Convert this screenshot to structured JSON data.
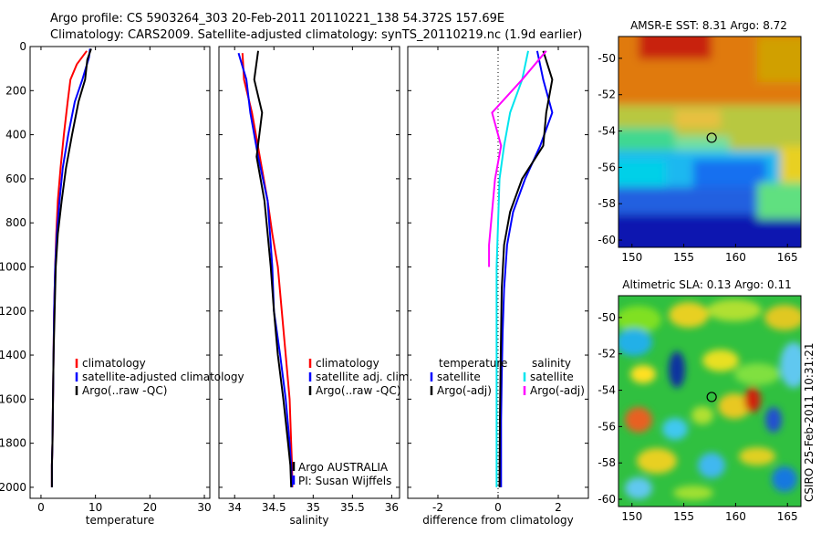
{
  "header": {
    "line1": "Argo profile: CS 5903264_303 20-Feb-2011 20110221_138 54.372S 157.69E",
    "line2": "Climatology: CARS2009. Satellite-adjusted climatology: synTS_20110219.nc (1.9d earlier)"
  },
  "side_label": "CSIRO 25-Feb-2011 10:31:21",
  "colors": {
    "climatology": "#ff0000",
    "satellite": "#0000ff",
    "argo": "#000000",
    "argo_salinity_diff": "#ff00ff",
    "satellite_salinity_diff": "#00e5ee"
  },
  "chart_data": [
    {
      "type": "line",
      "xlabel": "temperature",
      "ylim": [
        2050,
        0
      ],
      "xlim": [
        -2,
        31
      ],
      "yticks": [
        0,
        200,
        400,
        600,
        800,
        1000,
        1200,
        1400,
        1600,
        1800,
        2000
      ],
      "xticks": [
        0,
        10,
        20,
        30
      ],
      "legend": [
        "climatology",
        "satellite-adjusted climatology",
        "Argo(..raw -QC)"
      ],
      "series": [
        {
          "name": "climatology",
          "color": "#ff0000",
          "x": [
            8.4,
            6.6,
            5.4,
            4.9,
            4.2,
            3.6,
            3.1,
            2.8,
            2.6,
            2.4,
            2.3,
            2.2,
            2.1,
            2.0,
            2.0
          ],
          "y": [
            20,
            80,
            150,
            250,
            400,
            550,
            700,
            850,
            1000,
            1200,
            1400,
            1600,
            1800,
            1900,
            2000
          ]
        },
        {
          "name": "satellite-adjusted climatology",
          "color": "#0000ff",
          "x": [
            9.0,
            8.8,
            7.6,
            6.2,
            5.0,
            4.0,
            3.4,
            2.9,
            2.6,
            2.4,
            2.3,
            2.2,
            2.1,
            2.0,
            2.0
          ],
          "y": [
            10,
            50,
            150,
            250,
            400,
            550,
            700,
            850,
            1000,
            1200,
            1400,
            1600,
            1800,
            1900,
            2000
          ]
        },
        {
          "name": "Argo(..raw -QC)",
          "color": "#000000",
          "x": [
            9.2,
            8.5,
            8.1,
            6.9,
            5.7,
            4.6,
            3.8,
            3.1,
            2.7,
            2.5,
            2.3,
            2.2,
            2.1,
            2.0,
            2.0
          ],
          "y": [
            10,
            60,
            150,
            250,
            400,
            550,
            700,
            850,
            1000,
            1200,
            1400,
            1600,
            1800,
            1900,
            2000
          ]
        }
      ]
    },
    {
      "type": "line",
      "xlabel": "salinity",
      "ylim": [
        2050,
        0
      ],
      "xlim": [
        33.8,
        36.1
      ],
      "xticks": [
        34,
        34.5,
        35,
        35.5,
        36
      ],
      "legend": [
        "climatology",
        "satellite adj. clim.",
        "Argo(..raw -QC)"
      ],
      "annotation": [
        "Argo AUSTRALIA",
        "PI: Susan Wijffels"
      ],
      "series": [
        {
          "name": "climatology",
          "color": "#ff0000",
          "x": [
            34.1,
            34.12,
            34.22,
            34.32,
            34.42,
            34.48,
            34.55,
            34.6,
            34.65,
            34.7,
            34.72,
            34.73,
            34.735
          ],
          "y": [
            30,
            150,
            300,
            500,
            700,
            850,
            1000,
            1200,
            1400,
            1600,
            1800,
            1900,
            2000
          ]
        },
        {
          "name": "satellite adj. clim.",
          "color": "#0000ff",
          "x": [
            34.05,
            34.15,
            34.2,
            34.3,
            34.42,
            34.45,
            34.48,
            34.5,
            34.58,
            34.65,
            34.7,
            34.72,
            34.73
          ],
          "y": [
            30,
            150,
            300,
            500,
            700,
            850,
            1000,
            1200,
            1400,
            1600,
            1800,
            1900,
            2000
          ]
        },
        {
          "name": "Argo(..raw -QC)",
          "color": "#000000",
          "x": [
            34.3,
            34.25,
            34.35,
            34.28,
            34.38,
            34.42,
            34.46,
            34.5,
            34.55,
            34.62,
            34.68,
            34.71,
            34.72
          ],
          "y": [
            20,
            150,
            300,
            500,
            700,
            850,
            1000,
            1200,
            1400,
            1600,
            1800,
            1900,
            2000
          ]
        }
      ]
    },
    {
      "type": "line",
      "xlabel": "difference from climatology",
      "ylim": [
        2050,
        0
      ],
      "xlim": [
        -3,
        3
      ],
      "xticks": [
        -2,
        0,
        2
      ],
      "legend": [
        "temperature",
        "satellite",
        "Argo(-adj)",
        "salinity",
        "satellite",
        "Argo(-adj)"
      ],
      "series": [
        {
          "name": "temperature satellite",
          "color": "#0000ff",
          "x": [
            1.3,
            1.5,
            1.8,
            1.4,
            0.9,
            0.5,
            0.3,
            0.2,
            0.15,
            0.12,
            0.1,
            0.1,
            0.1
          ],
          "y": [
            20,
            150,
            300,
            450,
            600,
            750,
            900,
            1100,
            1300,
            1500,
            1700,
            1900,
            2000
          ]
        },
        {
          "name": "temperature Argo(-adj)",
          "color": "#000000",
          "x": [
            1.5,
            1.8,
            1.6,
            1.5,
            0.8,
            0.4,
            0.2,
            0.12,
            0.1,
            0.08,
            0.06,
            0.05
          ],
          "y": [
            20,
            150,
            300,
            450,
            600,
            750,
            900,
            1100,
            1300,
            1500,
            1700,
            2000
          ]
        },
        {
          "name": "salinity satellite",
          "color": "#00e5ee",
          "x": [
            1.0,
            0.8,
            0.4,
            0.2,
            0.05,
            0.0,
            -0.05,
            -0.05,
            -0.05,
            -0.05,
            -0.05
          ],
          "y": [
            20,
            150,
            300,
            450,
            600,
            800,
            1000,
            1200,
            1500,
            1800,
            2000
          ]
        },
        {
          "name": "salinity Argo(-adj)",
          "color": "#ff00ff",
          "x": [
            1.6,
            0.8,
            -0.2,
            0.1,
            -0.1,
            -0.2,
            -0.3,
            -0.3
          ],
          "y": [
            20,
            150,
            300,
            450,
            600,
            750,
            900,
            1000
          ]
        }
      ]
    },
    {
      "type": "heatmap",
      "title": "AMSR-E SST: 8.31 Argo: 8.72",
      "xlim": [
        148.7,
        166.3
      ],
      "ylim": [
        -60.4,
        -48.8
      ],
      "xticks": [
        150,
        155,
        160,
        165
      ],
      "yticks": [
        -50,
        -52,
        -54,
        -56,
        -58,
        -60
      ],
      "marker": {
        "lon": 157.69,
        "lat": -54.372
      }
    },
    {
      "type": "heatmap",
      "title": "Altimetric SLA: 0.13 Argo: 0.11",
      "xlim": [
        148.7,
        166.3
      ],
      "ylim": [
        -60.4,
        -48.8
      ],
      "xticks": [
        150,
        155,
        160,
        165
      ],
      "yticks": [
        -50,
        -52,
        -54,
        -56,
        -58,
        -60
      ],
      "marker": {
        "lon": 157.69,
        "lat": -54.372
      }
    }
  ]
}
